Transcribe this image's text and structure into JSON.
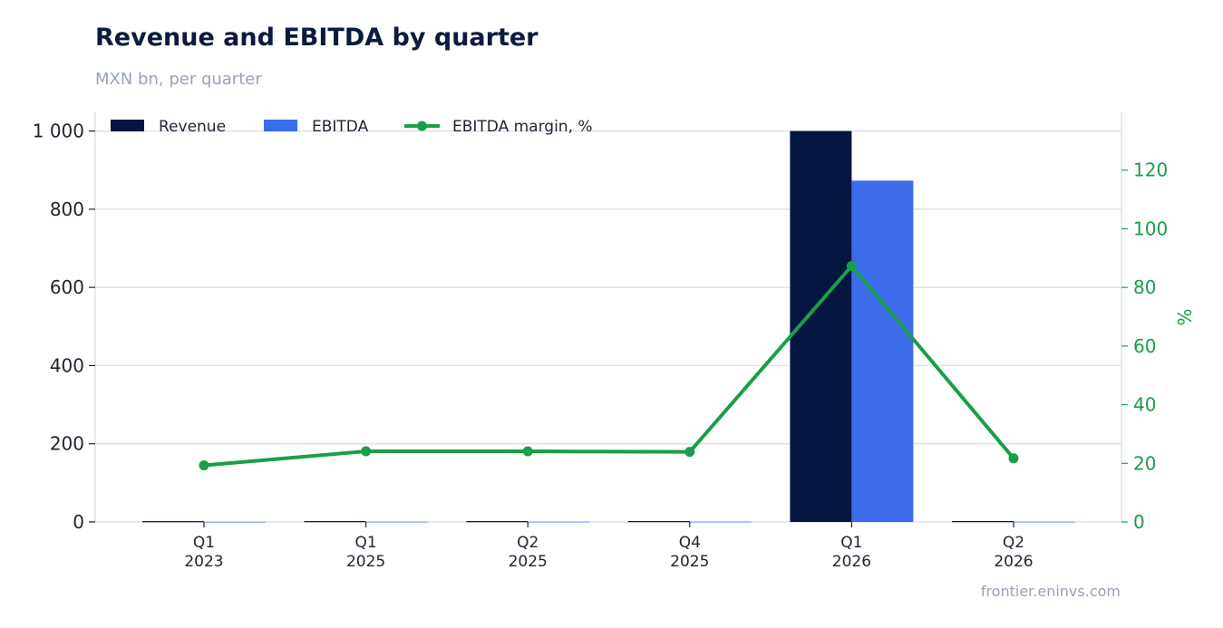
{
  "header": {
    "title": "Revenue and EBITDA by quarter",
    "subtitle": "MXN bn, per quarter"
  },
  "footer": {
    "source": "frontier.eninvs.com"
  },
  "colors": {
    "revenue": "#04163f",
    "ebitda": "#3b6be8",
    "margin": "#1a9e4a",
    "grid": "#dde1ee",
    "axis_right": "#1a9e4a"
  },
  "chart_data": {
    "type": "bar",
    "categories": [
      [
        "Q1",
        "2023"
      ],
      [
        "Q1",
        "2025"
      ],
      [
        "Q2",
        "2025"
      ],
      [
        "Q4",
        "2025"
      ],
      [
        "Q1",
        "2026"
      ],
      [
        "Q2",
        "2026"
      ]
    ],
    "series": [
      {
        "name": "Revenue",
        "type": "bar",
        "axis": "left",
        "values": [
          2.1,
          2.2,
          2.2,
          2.3,
          1000,
          2.4
        ]
      },
      {
        "name": "EBITDA",
        "type": "bar",
        "axis": "left",
        "values": [
          0.4,
          0.53,
          0.53,
          0.55,
          873,
          0.52
        ]
      },
      {
        "name": "EBITDA margin, %",
        "type": "line",
        "axis": "right",
        "values": [
          19.3,
          24.1,
          24.1,
          23.9,
          87.3,
          21.7
        ]
      }
    ],
    "y_left": {
      "min": 0,
      "max": 1050,
      "ticks": [
        0,
        200,
        400,
        600,
        800,
        1000
      ],
      "tick_labels": [
        "0",
        "200",
        "400",
        "600",
        "800",
        "1 000"
      ]
    },
    "y_right": {
      "min": 0,
      "max": 140,
      "ticks": [
        0,
        20,
        40,
        60,
        80,
        100,
        120
      ],
      "tick_labels": [
        "0",
        "20",
        "40",
        "60",
        "80",
        "100",
        "120"
      ],
      "label": "%"
    },
    "grid": true,
    "legend_position": "top-left"
  }
}
